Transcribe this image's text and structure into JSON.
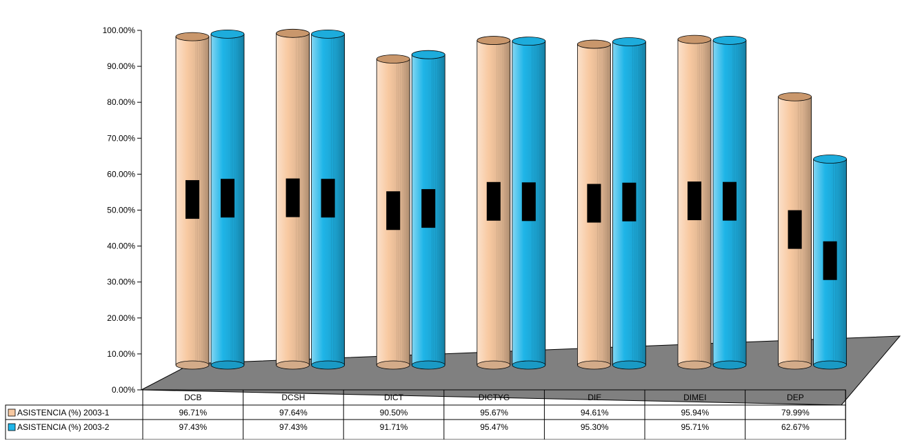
{
  "chart_data": {
    "type": "bar",
    "style": "3d-cylinder",
    "categories": [
      "DCB",
      "DCSH",
      "DICT",
      "DICTYG",
      "DIE",
      "DIMEI",
      "DEP"
    ],
    "series": [
      {
        "name": "ASISTENCIA (%) 2003-1",
        "values": [
          96.71,
          97.64,
          90.5,
          95.67,
          94.61,
          95.94,
          79.99
        ],
        "labels": [
          "96.71%",
          "97.64%",
          "90.50%",
          "95.67%",
          "94.61%",
          "95.94%",
          "79.99%"
        ],
        "color": "#F8C9A1"
      },
      {
        "name": "ASISTENCIA (%) 2003-2",
        "values": [
          97.43,
          97.43,
          91.71,
          95.47,
          95.3,
          95.71,
          62.67
        ],
        "labels": [
          "97.43%",
          "97.43%",
          "91.71%",
          "95.47%",
          "95.30%",
          "95.71%",
          "62.67%"
        ],
        "color": "#1FB5E8"
      }
    ],
    "yticks": [
      "0.00%",
      "10.00%",
      "20.00%",
      "30.00%",
      "40.00%",
      "50.00%",
      "60.00%",
      "70.00%",
      "80.00%",
      "90.00%",
      "100.00%"
    ],
    "ylim": [
      0,
      100
    ],
    "title": "",
    "xlabel": "",
    "ylabel": "",
    "legend": "data-table-left",
    "floor_color": "#808080"
  }
}
